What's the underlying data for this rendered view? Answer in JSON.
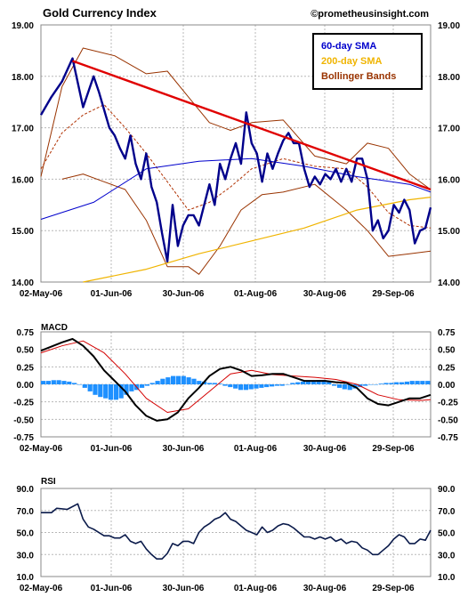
{
  "chart_data": [
    {
      "type": "line",
      "title": "Gold Currency Index",
      "source": "©prometheusinsight.com",
      "x_ticks": [
        "02-May-06",
        "01-Jun-06",
        "30-Jun-06",
        "01-Aug-06",
        "30-Aug-06",
        "29-Sep-06"
      ],
      "y_ticks": [
        "19.00",
        "18.00",
        "17.00",
        "16.00",
        "15.00",
        "14.00"
      ],
      "ylim": [
        14,
        19
      ],
      "grid": true,
      "legend_position": "top-right",
      "series": [
        {
          "name": "60-day SMA",
          "color": "#0000cc"
        },
        {
          "name": "200-day SMA",
          "color": "#f0b400"
        },
        {
          "name": "Bollinger Bands",
          "color": "#993300"
        }
      ],
      "annotations": [
        {
          "type": "trendline",
          "color": "#e00000",
          "from": [
            "05-May-06",
            18.3
          ],
          "to": [
            "12-Oct-06",
            15.8
          ]
        }
      ],
      "price_points": [
        [
          0,
          17.25
        ],
        [
          2,
          17.6
        ],
        [
          4,
          17.9
        ],
        [
          6,
          18.35
        ],
        [
          8,
          17.4
        ],
        [
          10,
          18.0
        ],
        [
          11,
          17.7
        ],
        [
          13,
          17.0
        ],
        [
          14,
          16.85
        ],
        [
          15,
          16.6
        ],
        [
          16,
          16.4
        ],
        [
          17,
          16.85
        ],
        [
          18,
          16.3
        ],
        [
          19,
          16.0
        ],
        [
          20,
          16.5
        ],
        [
          21,
          15.85
        ],
        [
          22,
          15.55
        ],
        [
          23,
          14.95
        ],
        [
          24,
          14.4
        ],
        [
          25,
          15.5
        ],
        [
          26,
          14.7
        ],
        [
          27,
          15.1
        ],
        [
          28,
          15.3
        ],
        [
          29,
          15.3
        ],
        [
          30,
          15.1
        ],
        [
          31,
          15.5
        ],
        [
          32,
          15.9
        ],
        [
          33,
          15.5
        ],
        [
          34,
          16.3
        ],
        [
          35,
          16.0
        ],
        [
          36,
          16.4
        ],
        [
          37,
          16.7
        ],
        [
          38,
          16.3
        ],
        [
          39,
          17.3
        ],
        [
          40,
          16.7
        ],
        [
          41,
          16.5
        ],
        [
          42,
          15.95
        ],
        [
          43,
          16.5
        ],
        [
          44,
          16.2
        ],
        [
          45,
          16.5
        ],
        [
          46,
          16.75
        ],
        [
          47,
          16.9
        ],
        [
          48,
          16.7
        ],
        [
          49,
          16.7
        ],
        [
          50,
          16.2
        ],
        [
          51,
          15.85
        ],
        [
          52,
          16.05
        ],
        [
          53,
          15.9
        ],
        [
          54,
          16.1
        ],
        [
          55,
          16.0
        ],
        [
          56,
          16.2
        ],
        [
          57,
          15.95
        ],
        [
          58,
          16.2
        ],
        [
          59,
          15.95
        ],
        [
          60,
          16.4
        ],
        [
          61,
          16.4
        ],
        [
          62,
          16.0
        ],
        [
          63,
          15.0
        ],
        [
          64,
          15.2
        ],
        [
          65,
          14.85
        ],
        [
          66,
          15.0
        ],
        [
          67,
          15.5
        ],
        [
          68,
          15.35
        ],
        [
          69,
          15.6
        ],
        [
          70,
          15.4
        ],
        [
          71,
          14.75
        ],
        [
          72,
          15.0
        ],
        [
          73,
          15.05
        ],
        [
          74,
          15.45
        ]
      ],
      "sma60_points": [
        [
          0,
          15.22
        ],
        [
          10,
          15.55
        ],
        [
          20,
          16.2
        ],
        [
          30,
          16.35
        ],
        [
          40,
          16.4
        ],
        [
          50,
          16.25
        ],
        [
          60,
          16.05
        ],
        [
          70,
          15.9
        ],
        [
          74,
          15.75
        ]
      ],
      "sma200_points": [
        [
          8,
          14.0
        ],
        [
          20,
          14.25
        ],
        [
          30,
          14.55
        ],
        [
          40,
          14.8
        ],
        [
          50,
          15.05
        ],
        [
          60,
          15.4
        ],
        [
          70,
          15.6
        ],
        [
          74,
          15.65
        ]
      ],
      "bb_upper_points": [
        [
          0,
          16.05
        ],
        [
          4,
          17.8
        ],
        [
          8,
          18.55
        ],
        [
          14,
          18.4
        ],
        [
          20,
          18.05
        ],
        [
          24,
          18.1
        ],
        [
          28,
          17.6
        ],
        [
          32,
          17.1
        ],
        [
          36,
          16.95
        ],
        [
          40,
          17.1
        ],
        [
          46,
          17.15
        ],
        [
          52,
          16.45
        ],
        [
          58,
          16.3
        ],
        [
          62,
          16.7
        ],
        [
          66,
          16.6
        ],
        [
          70,
          16.1
        ],
        [
          74,
          15.8
        ]
      ],
      "bb_middle_points": [
        [
          0,
          16.2
        ],
        [
          4,
          16.9
        ],
        [
          8,
          17.25
        ],
        [
          12,
          17.45
        ],
        [
          16,
          17.0
        ],
        [
          20,
          16.5
        ],
        [
          24,
          15.95
        ],
        [
          28,
          15.4
        ],
        [
          32,
          15.55
        ],
        [
          36,
          15.85
        ],
        [
          40,
          16.2
        ],
        [
          46,
          16.4
        ],
        [
          52,
          16.25
        ],
        [
          58,
          16.2
        ],
        [
          62,
          15.85
        ],
        [
          66,
          15.35
        ],
        [
          70,
          15.1
        ],
        [
          74,
          15.05
        ]
      ],
      "bb_lower_points": [
        [
          4,
          16.0
        ],
        [
          8,
          16.1
        ],
        [
          12,
          15.95
        ],
        [
          16,
          15.8
        ],
        [
          20,
          15.2
        ],
        [
          24,
          14.3
        ],
        [
          28,
          14.3
        ],
        [
          30,
          14.15
        ],
        [
          34,
          14.7
        ],
        [
          38,
          15.4
        ],
        [
          42,
          15.7
        ],
        [
          46,
          15.75
        ],
        [
          52,
          15.9
        ],
        [
          58,
          15.4
        ],
        [
          62,
          15.0
        ],
        [
          66,
          14.5
        ],
        [
          70,
          14.55
        ],
        [
          74,
          14.6
        ]
      ]
    },
    {
      "type": "line",
      "title": "MACD",
      "y_ticks": [
        "0.75",
        "0.50",
        "0.25",
        "0.00",
        "-0.25",
        "-0.50",
        "-0.75"
      ],
      "ylim": [
        -0.75,
        0.75
      ],
      "macd_points": [
        [
          0,
          0.48
        ],
        [
          4,
          0.6
        ],
        [
          6,
          0.65
        ],
        [
          8,
          0.55
        ],
        [
          10,
          0.4
        ],
        [
          12,
          0.2
        ],
        [
          14,
          0.05
        ],
        [
          16,
          -0.1
        ],
        [
          18,
          -0.3
        ],
        [
          20,
          -0.45
        ],
        [
          22,
          -0.52
        ],
        [
          24,
          -0.5
        ],
        [
          26,
          -0.4
        ],
        [
          28,
          -0.2
        ],
        [
          30,
          -0.05
        ],
        [
          32,
          0.12
        ],
        [
          34,
          0.22
        ],
        [
          36,
          0.25
        ],
        [
          38,
          0.2
        ],
        [
          40,
          0.12
        ],
        [
          42,
          0.13
        ],
        [
          44,
          0.15
        ],
        [
          46,
          0.15
        ],
        [
          48,
          0.1
        ],
        [
          50,
          0.05
        ],
        [
          52,
          0.05
        ],
        [
          54,
          0.05
        ],
        [
          56,
          0.03
        ],
        [
          58,
          0.02
        ],
        [
          60,
          -0.05
        ],
        [
          62,
          -0.2
        ],
        [
          64,
          -0.28
        ],
        [
          66,
          -0.3
        ],
        [
          68,
          -0.25
        ],
        [
          70,
          -0.2
        ],
        [
          72,
          -0.2
        ],
        [
          74,
          -0.15
        ]
      ],
      "signal_points": [
        [
          0,
          0.45
        ],
        [
          4,
          0.55
        ],
        [
          8,
          0.62
        ],
        [
          12,
          0.45
        ],
        [
          16,
          0.15
        ],
        [
          20,
          -0.2
        ],
        [
          24,
          -0.4
        ],
        [
          28,
          -0.35
        ],
        [
          32,
          -0.1
        ],
        [
          36,
          0.15
        ],
        [
          40,
          0.2
        ],
        [
          44,
          0.14
        ],
        [
          48,
          0.12
        ],
        [
          52,
          0.1
        ],
        [
          56,
          0.07
        ],
        [
          60,
          0.0
        ],
        [
          64,
          -0.15
        ],
        [
          68,
          -0.22
        ],
        [
          72,
          -0.23
        ],
        [
          74,
          -0.22
        ]
      ],
      "histogram": [
        0.05,
        0.05,
        0.06,
        0.06,
        0.05,
        0.04,
        0.02,
        0.0,
        -0.05,
        -0.1,
        -0.15,
        -0.18,
        -0.2,
        -0.22,
        -0.22,
        -0.2,
        -0.15,
        -0.1,
        -0.08,
        -0.05,
        -0.02,
        0.02,
        0.05,
        0.08,
        0.1,
        0.12,
        0.12,
        0.12,
        0.1,
        0.08,
        0.05,
        0.04,
        0.02,
        0.02,
        0.01,
        -0.02,
        -0.04,
        -0.06,
        -0.08,
        -0.08,
        -0.07,
        -0.06,
        -0.05,
        -0.04,
        -0.03,
        -0.02,
        -0.02,
        0.0,
        0.02,
        0.03,
        0.04,
        0.05,
        0.05,
        0.06,
        0.06,
        0.04,
        -0.02,
        -0.05,
        -0.07,
        -0.08,
        -0.06,
        -0.04,
        -0.02,
        0.0,
        0.0,
        0.01,
        0.02,
        0.02,
        0.03,
        0.03,
        0.04,
        0.05,
        0.05,
        0.05,
        0.05
      ]
    },
    {
      "type": "line",
      "title": "RSI",
      "y_ticks": [
        "90.0",
        "70.0",
        "50.0",
        "30.0",
        "10.0"
      ],
      "ylim": [
        10,
        90
      ],
      "rsi_points": [
        [
          0,
          68
        ],
        [
          2,
          68
        ],
        [
          3,
          72
        ],
        [
          5,
          71
        ],
        [
          7,
          76
        ],
        [
          8,
          62
        ],
        [
          9,
          55
        ],
        [
          10,
          53
        ],
        [
          12,
          47
        ],
        [
          13,
          47
        ],
        [
          14,
          45
        ],
        [
          15,
          45
        ],
        [
          16,
          48
        ],
        [
          17,
          42
        ],
        [
          18,
          40
        ],
        [
          19,
          42
        ],
        [
          20,
          35
        ],
        [
          21,
          30
        ],
        [
          22,
          26
        ],
        [
          23,
          26
        ],
        [
          24,
          31
        ],
        [
          25,
          40
        ],
        [
          26,
          38
        ],
        [
          27,
          42
        ],
        [
          28,
          42
        ],
        [
          29,
          40
        ],
        [
          30,
          50
        ],
        [
          31,
          55
        ],
        [
          32,
          58
        ],
        [
          33,
          62
        ],
        [
          34,
          64
        ],
        [
          35,
          68
        ],
        [
          36,
          62
        ],
        [
          37,
          60
        ],
        [
          38,
          56
        ],
        [
          39,
          52
        ],
        [
          40,
          50
        ],
        [
          41,
          48
        ],
        [
          42,
          55
        ],
        [
          43,
          50
        ],
        [
          44,
          52
        ],
        [
          45,
          56
        ],
        [
          46,
          58
        ],
        [
          47,
          57
        ],
        [
          48,
          54
        ],
        [
          49,
          50
        ],
        [
          50,
          46
        ],
        [
          51,
          46
        ],
        [
          52,
          44
        ],
        [
          53,
          46
        ],
        [
          54,
          44
        ],
        [
          55,
          46
        ],
        [
          56,
          42
        ],
        [
          57,
          44
        ],
        [
          58,
          40
        ],
        [
          59,
          42
        ],
        [
          60,
          41
        ],
        [
          61,
          36
        ],
        [
          62,
          34
        ],
        [
          63,
          30
        ],
        [
          64,
          30
        ],
        [
          65,
          34
        ],
        [
          66,
          38
        ],
        [
          67,
          44
        ],
        [
          68,
          48
        ],
        [
          69,
          46
        ],
        [
          70,
          40
        ],
        [
          71,
          40
        ],
        [
          72,
          44
        ],
        [
          73,
          43
        ],
        [
          74,
          52
        ]
      ]
    }
  ]
}
